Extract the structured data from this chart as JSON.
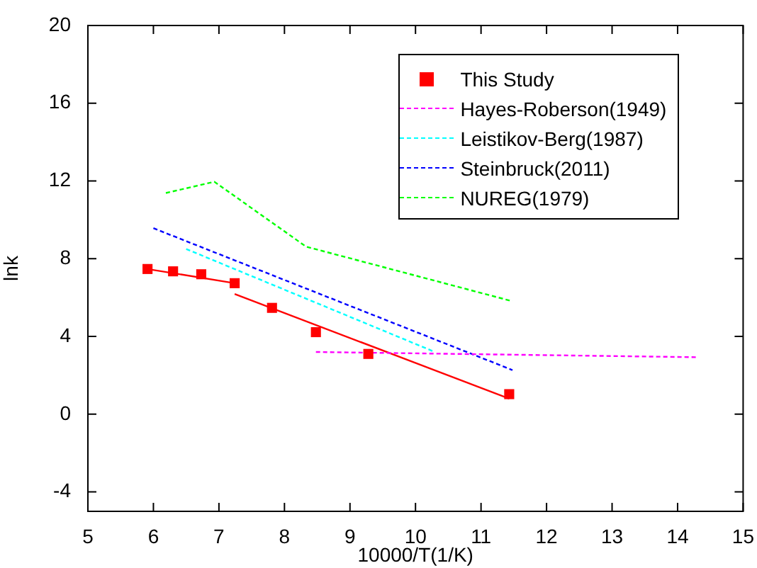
{
  "chart_data": {
    "type": "line",
    "xlabel": "10000/T(1/K)",
    "ylabel": "lnk",
    "xlim": [
      5,
      15
    ],
    "ylim": [
      -5,
      20
    ],
    "xticks": [
      5,
      6,
      7,
      8,
      9,
      10,
      11,
      12,
      13,
      14,
      15
    ],
    "yticks": [
      -4,
      0,
      4,
      8,
      12,
      16,
      20
    ],
    "grid": false,
    "legend": "top right",
    "series": [
      {
        "type": "scatter",
        "name": "This Study",
        "color": "#ff0000",
        "marker": "square",
        "x": [
          5.91,
          6.3,
          6.73,
          7.24,
          7.81,
          8.48,
          9.28,
          11.43
        ],
        "values": [
          7.47,
          7.35,
          7.2,
          6.74,
          5.47,
          4.22,
          3.1,
          1.03
        ]
      },
      {
        "name": "Hayes-Roberson(1949)",
        "color": "#ff00ff",
        "line_style": "dashed",
        "marker": "none",
        "x": [
          8.48,
          14.31
        ],
        "values": [
          3.2,
          2.93
        ]
      },
      {
        "name": "Leistikov-Berg(1987)",
        "color": "#00ffff",
        "line_style": "dashed",
        "marker": "none",
        "x": [
          6.5,
          10.26
        ],
        "values": [
          8.5,
          3.25
        ]
      },
      {
        "name": "Steinbruck(2011)",
        "color": "#0000ff",
        "line_style": "dashed",
        "marker": "none",
        "x": [
          6.0,
          11.48
        ],
        "values": [
          9.57,
          2.27
        ]
      },
      {
        "name": "NUREG(1979)",
        "color": "#00ff00",
        "line_style": "dashed",
        "marker": "none",
        "x": [
          6.19,
          6.93,
          8.33,
          11.48
        ],
        "values": [
          11.38,
          11.96,
          8.62,
          5.81
        ]
      },
      {
        "color": "#ff0000",
        "line_style": "solid",
        "marker": "none",
        "x": [
          5.91,
          7.24
        ],
        "values": [
          7.47,
          6.74
        ]
      },
      {
        "color": "#ff0000",
        "line_style": "solid",
        "marker": "none",
        "x": [
          7.24,
          11.43
        ],
        "values": [
          6.18,
          0.8
        ]
      }
    ]
  }
}
